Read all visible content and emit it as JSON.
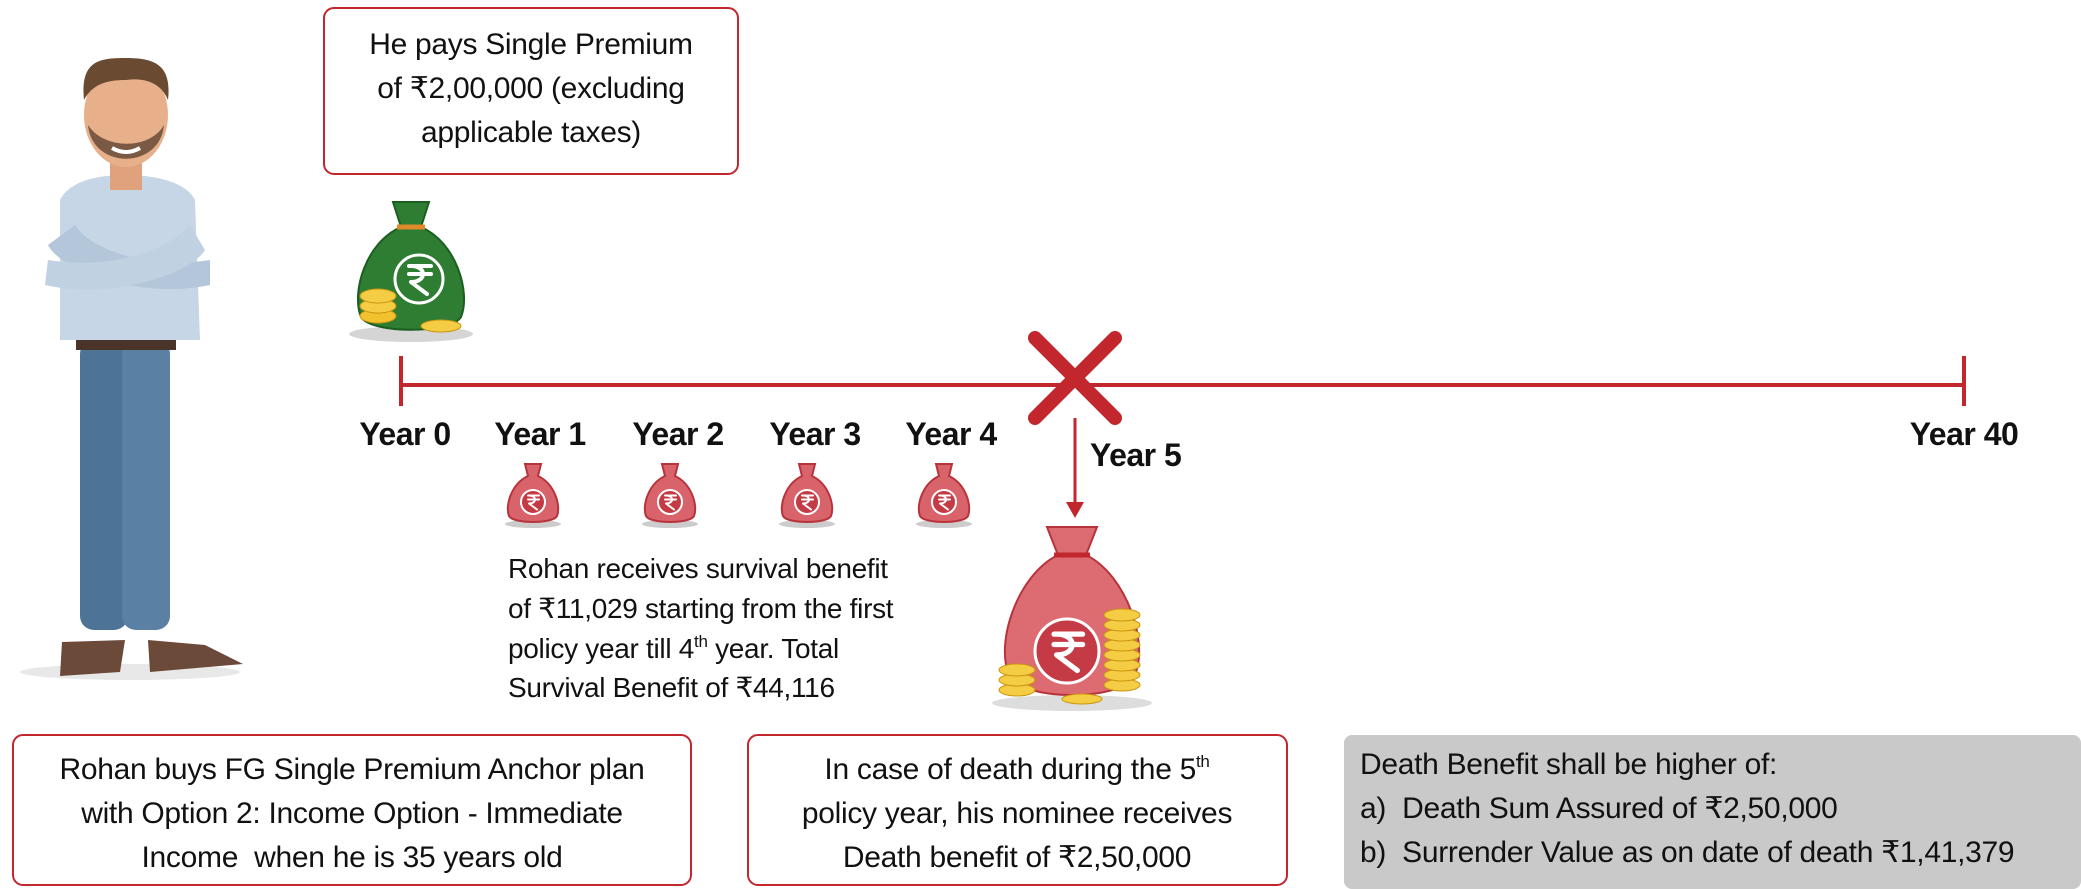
{
  "premium_box": {
    "lines": [
      "He pays Single Premium",
      "of ₹2,00,000 (excluding",
      "applicable taxes)"
    ]
  },
  "timeline": {
    "years": [
      "Year 0",
      "Year 1",
      "Year 2",
      "Year 3",
      "Year 4",
      "Year 5",
      "Year 40"
    ]
  },
  "survival_note": {
    "lines": [
      "Rohan receives survival benefit",
      "of ₹11,029 starting from the first",
      {
        "text": "policy year till 4",
        "sup": "th",
        "rest": " year. Total"
      },
      "Survival Benefit of ₹44,116"
    ]
  },
  "plan_box": {
    "lines": [
      "Rohan buys FG Single Premium Anchor plan",
      "with Option 2: Income Option - Immediate",
      "Income  when he is 35 years old"
    ]
  },
  "death_box": {
    "lines": [
      {
        "text": "In case of death during the 5",
        "sup": "th"
      },
      "policy year, his nominee receives",
      "Death benefit of ₹2,50,000"
    ]
  },
  "benefit_box": {
    "lines": [
      "Death Benefit shall be higher of:",
      "a)  Death Sum Assured of ₹2,50,000",
      "b)  Surrender Value as on date of death ₹1,41,379"
    ]
  }
}
